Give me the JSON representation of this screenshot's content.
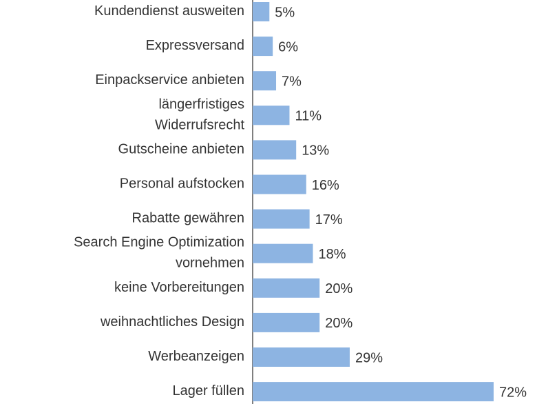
{
  "chart_data": {
    "type": "bar",
    "orientation": "horizontal",
    "categories": [
      "Kundendienst ausweiten",
      "Expressversand",
      "Einpackservice anbieten",
      "längerfristiges\nWiderrufsrecht",
      "Gutscheine anbieten",
      "Personal aufstocken",
      "Rabatte gewähren",
      "Search Engine Optimization\nvornehmen",
      "keine Vorbereitungen",
      "weihnachtliches Design",
      "Werbeanzeigen",
      "Lager füllen"
    ],
    "values": [
      5,
      6,
      7,
      11,
      13,
      16,
      17,
      18,
      20,
      20,
      29,
      72
    ],
    "value_labels": [
      "5%",
      "6%",
      "7%",
      "11%",
      "13%",
      "16%",
      "17%",
      "18%",
      "20%",
      "20%",
      "29%",
      "72%"
    ],
    "color": "#8db4e2"
  }
}
